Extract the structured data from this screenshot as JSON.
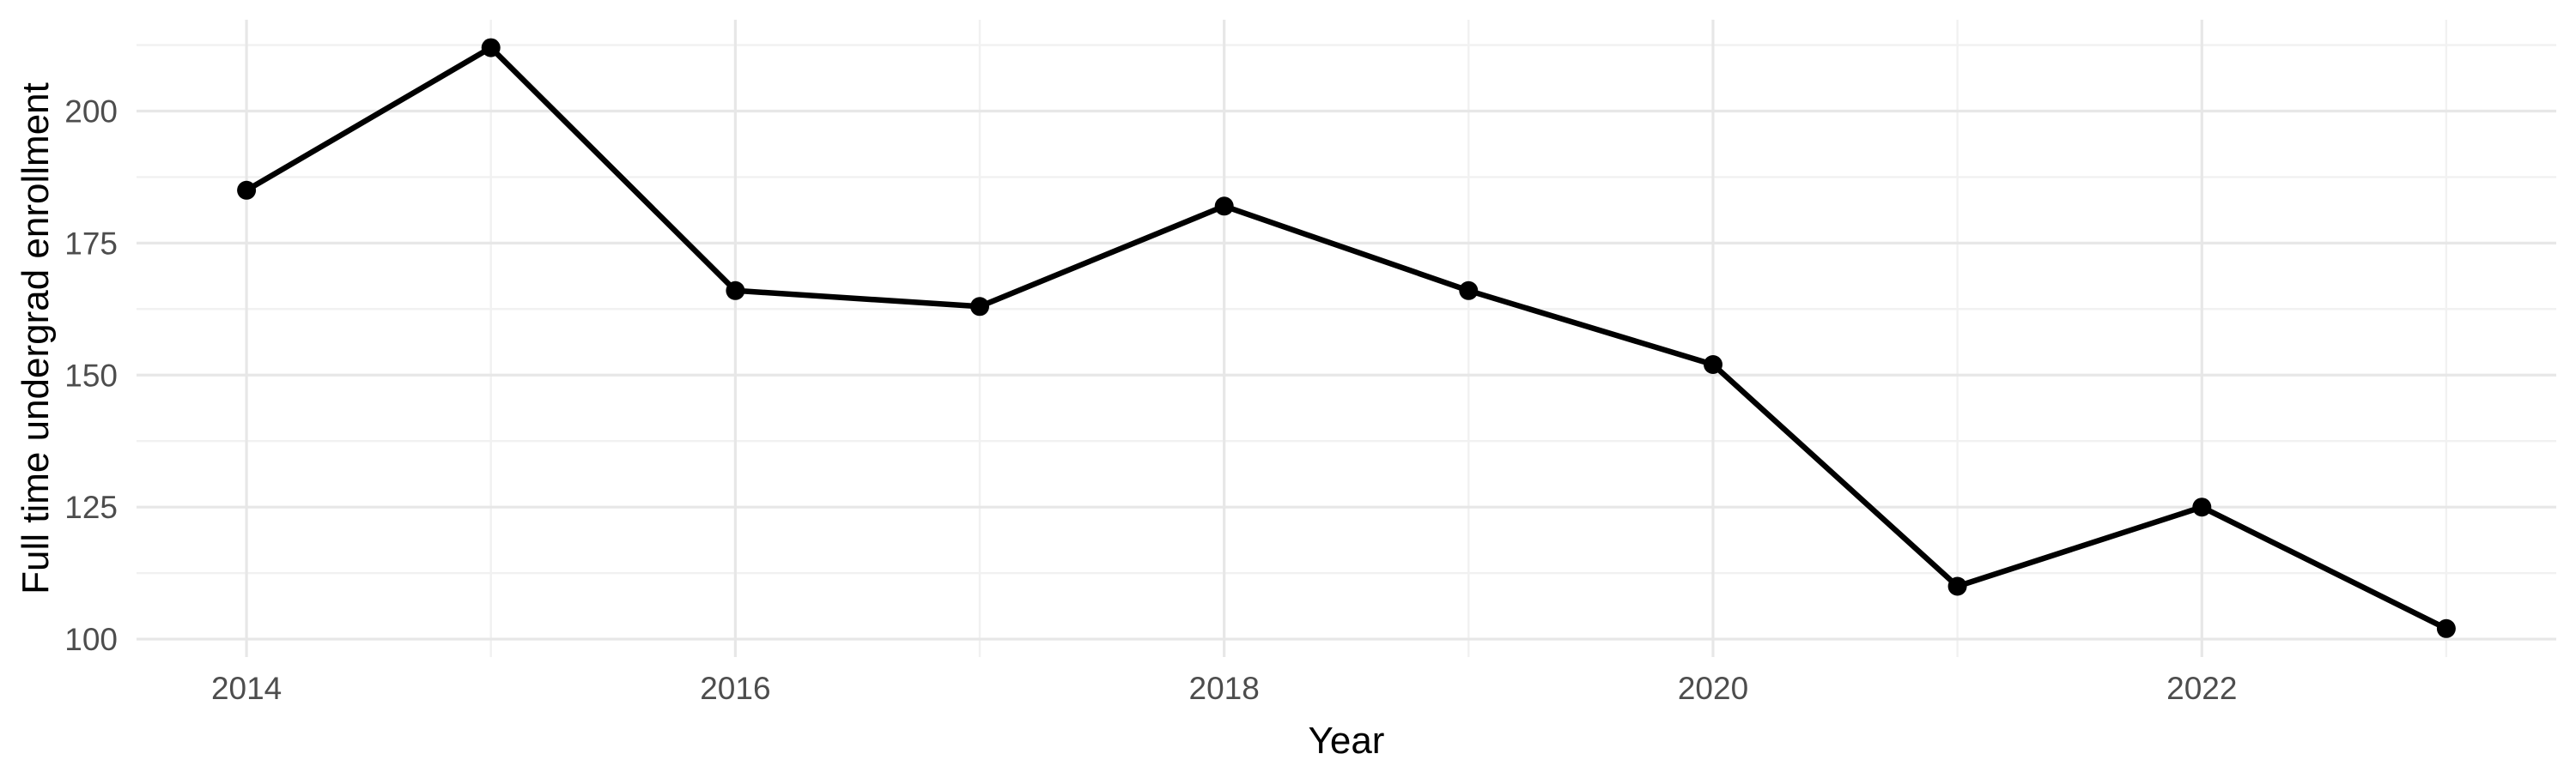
{
  "figure": {
    "background": "#FFFFFF"
  },
  "chart_data": {
    "type": "line",
    "title": "",
    "xlabel": "Year",
    "ylabel": "Full time undergrad enrollment",
    "x": [
      2014,
      2015,
      2016,
      2017,
      2018,
      2019,
      2020,
      2021,
      2022,
      2023
    ],
    "series": [
      {
        "name": "Full time undergrad enrollment",
        "values": [
          185,
          212,
          166,
          163,
          182,
          166,
          152,
          110,
          125,
          102
        ]
      }
    ],
    "x_major_breaks": [
      2014,
      2016,
      2018,
      2020,
      2022
    ],
    "x_tick_labels": [
      "2014",
      "2016",
      "2018",
      "2020",
      "2022"
    ],
    "x_minor_breaks": [
      2015,
      2017,
      2019,
      2021,
      2023
    ],
    "y_major_breaks": [
      100,
      125,
      150,
      175,
      200
    ],
    "y_tick_labels": [
      "100",
      "125",
      "150",
      "175",
      "200"
    ],
    "y_minor_breaks": [
      112.5,
      137.5,
      162.5,
      187.5,
      212.5
    ],
    "xlim": [
      2013.55,
      2023.45
    ],
    "ylim": [
      96.6,
      217.3
    ],
    "grid": "major+minor",
    "legend": "none",
    "style": {
      "line_color": "#000000",
      "point_color": "#000000",
      "major_grid_color": "#E7E7E7",
      "minor_grid_color": "#F1F1F1",
      "tick_label_color": "#4D4D4D",
      "axis_title_color": "#000000",
      "background": "#FFFFFF"
    }
  }
}
